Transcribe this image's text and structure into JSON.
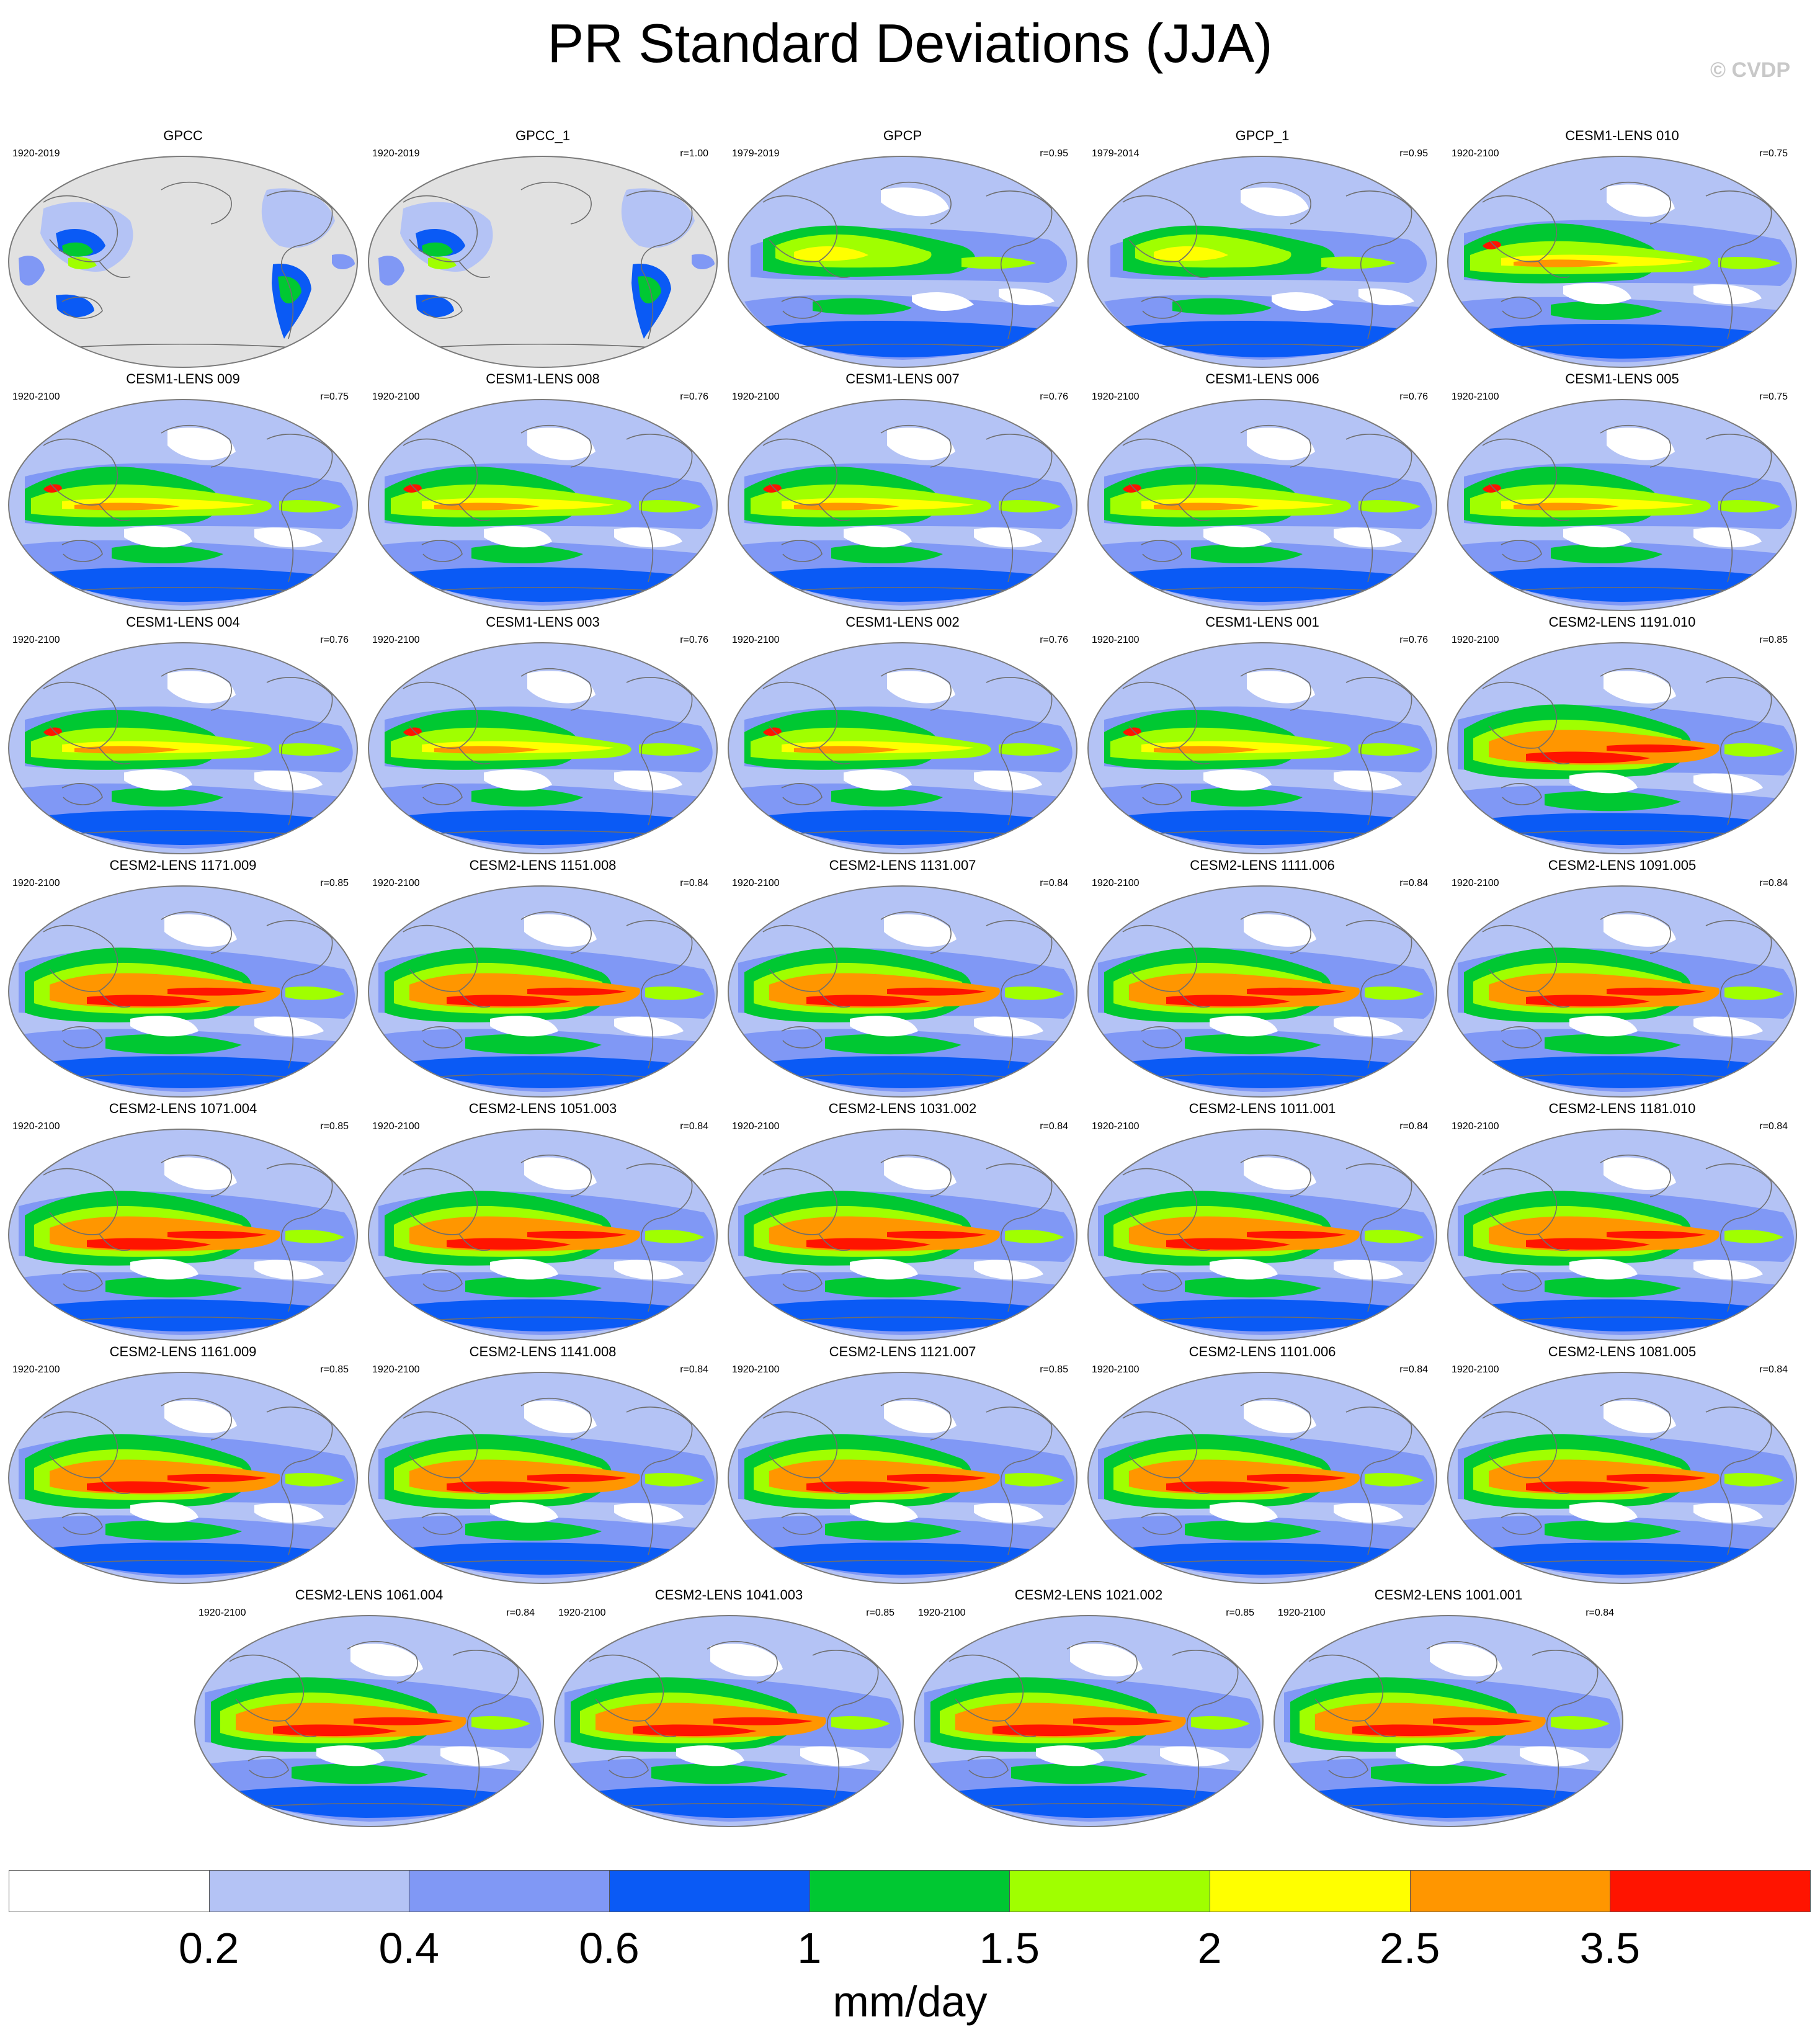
{
  "title": "PR Standard Deviations (JJA)",
  "copyright": "© CVDP",
  "units": "mm/day",
  "colorbar": {
    "colors": [
      "#ffffff",
      "#b4c3f5",
      "#8098f5",
      "#0a5af5",
      "#00c832",
      "#a0ff00",
      "#ffff00",
      "#ff9600",
      "#ff1400"
    ],
    "tick_labels": [
      "0.2",
      "0.4",
      "0.6",
      "1",
      "1.5",
      "2",
      "2.5",
      "3.5"
    ]
  },
  "colors": {
    "land_missing": "#e1e1e1",
    "coast": "#6e6e6e",
    "outline": "#7a7a7a"
  },
  "panels": [
    {
      "name": "GPCC",
      "years": "1920-2019",
      "corr": "",
      "style": "gpcc"
    },
    {
      "name": "GPCC_1",
      "years": "1920-2019",
      "corr": "r=1.00",
      "style": "gpcc"
    },
    {
      "name": "GPCP",
      "years": "1979-2019",
      "corr": "r=0.95",
      "style": "gpcp"
    },
    {
      "name": "GPCP_1",
      "years": "1979-2014",
      "corr": "r=0.95",
      "style": "gpcp"
    },
    {
      "name": "CESM1-LENS 010",
      "years": "1920-2100",
      "corr": "r=0.75",
      "style": "cesm1"
    },
    {
      "name": "CESM1-LENS 009",
      "years": "1920-2100",
      "corr": "r=0.75",
      "style": "cesm1"
    },
    {
      "name": "CESM1-LENS 008",
      "years": "1920-2100",
      "corr": "r=0.76",
      "style": "cesm1"
    },
    {
      "name": "CESM1-LENS 007",
      "years": "1920-2100",
      "corr": "r=0.76",
      "style": "cesm1"
    },
    {
      "name": "CESM1-LENS 006",
      "years": "1920-2100",
      "corr": "r=0.76",
      "style": "cesm1"
    },
    {
      "name": "CESM1-LENS 005",
      "years": "1920-2100",
      "corr": "r=0.75",
      "style": "cesm1"
    },
    {
      "name": "CESM1-LENS 004",
      "years": "1920-2100",
      "corr": "r=0.76",
      "style": "cesm1"
    },
    {
      "name": "CESM1-LENS 003",
      "years": "1920-2100",
      "corr": "r=0.76",
      "style": "cesm1"
    },
    {
      "name": "CESM1-LENS 002",
      "years": "1920-2100",
      "corr": "r=0.76",
      "style": "cesm1"
    },
    {
      "name": "CESM1-LENS 001",
      "years": "1920-2100",
      "corr": "r=0.76",
      "style": "cesm1"
    },
    {
      "name": "CESM2-LENS 1191.010",
      "years": "1920-2100",
      "corr": "r=0.85",
      "style": "cesm2"
    },
    {
      "name": "CESM2-LENS 1171.009",
      "years": "1920-2100",
      "corr": "r=0.85",
      "style": "cesm2"
    },
    {
      "name": "CESM2-LENS 1151.008",
      "years": "1920-2100",
      "corr": "r=0.84",
      "style": "cesm2"
    },
    {
      "name": "CESM2-LENS 1131.007",
      "years": "1920-2100",
      "corr": "r=0.84",
      "style": "cesm2"
    },
    {
      "name": "CESM2-LENS 1111.006",
      "years": "1920-2100",
      "corr": "r=0.84",
      "style": "cesm2"
    },
    {
      "name": "CESM2-LENS 1091.005",
      "years": "1920-2100",
      "corr": "r=0.84",
      "style": "cesm2"
    },
    {
      "name": "CESM2-LENS 1071.004",
      "years": "1920-2100",
      "corr": "r=0.85",
      "style": "cesm2"
    },
    {
      "name": "CESM2-LENS 1051.003",
      "years": "1920-2100",
      "corr": "r=0.84",
      "style": "cesm2"
    },
    {
      "name": "CESM2-LENS 1031.002",
      "years": "1920-2100",
      "corr": "r=0.84",
      "style": "cesm2"
    },
    {
      "name": "CESM2-LENS 1011.001",
      "years": "1920-2100",
      "corr": "r=0.84",
      "style": "cesm2"
    },
    {
      "name": "CESM2-LENS 1181.010",
      "years": "1920-2100",
      "corr": "r=0.84",
      "style": "cesm2"
    },
    {
      "name": "CESM2-LENS 1161.009",
      "years": "1920-2100",
      "corr": "r=0.85",
      "style": "cesm2"
    },
    {
      "name": "CESM2-LENS 1141.008",
      "years": "1920-2100",
      "corr": "r=0.84",
      "style": "cesm2"
    },
    {
      "name": "CESM2-LENS 1121.007",
      "years": "1920-2100",
      "corr": "r=0.85",
      "style": "cesm2"
    },
    {
      "name": "CESM2-LENS 1101.006",
      "years": "1920-2100",
      "corr": "r=0.84",
      "style": "cesm2"
    },
    {
      "name": "CESM2-LENS 1081.005",
      "years": "1920-2100",
      "corr": "r=0.84",
      "style": "cesm2"
    },
    {
      "name": "CESM2-LENS 1061.004",
      "years": "1920-2100",
      "corr": "r=0.84",
      "style": "cesm2"
    },
    {
      "name": "CESM2-LENS 1041.003",
      "years": "1920-2100",
      "corr": "r=0.85",
      "style": "cesm2"
    },
    {
      "name": "CESM2-LENS 1021.002",
      "years": "1920-2100",
      "corr": "r=0.85",
      "style": "cesm2"
    },
    {
      "name": "CESM2-LENS 1001.001",
      "years": "1920-2100",
      "corr": "r=0.84",
      "style": "cesm2"
    }
  ]
}
